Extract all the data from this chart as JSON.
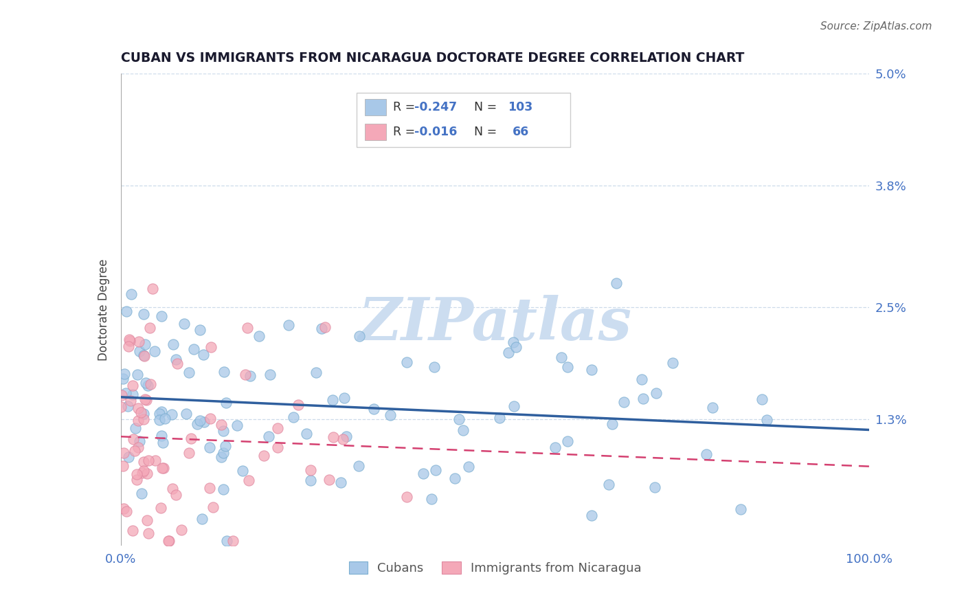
{
  "title": "CUBAN VS IMMIGRANTS FROM NICARAGUA DOCTORATE DEGREE CORRELATION CHART",
  "source": "Source: ZipAtlas.com",
  "ylabel": "Doctorate Degree",
  "xlim": [
    0.0,
    100.0
  ],
  "ylim": [
    -0.05,
    5.0
  ],
  "yticks": [
    1.3,
    2.5,
    3.8,
    5.0
  ],
  "ytick_labels": [
    "1.3%",
    "2.5%",
    "3.8%",
    "5.0%"
  ],
  "blue_scatter_color": "#a8c8e8",
  "pink_scatter_color": "#f4a8b8",
  "blue_line_color": "#2f5f9e",
  "pink_line_color": "#d44070",
  "watermark": "ZIPatlas",
  "watermark_color": "#ccddf0",
  "title_color": "#1a1a2e",
  "axis_label_color": "#4472c4",
  "grid_color": "#c8d8e8",
  "cubans_n": 103,
  "nicaragua_n": 66,
  "cubans_r": -0.247,
  "nicaragua_r": -0.016,
  "blue_legend_label": "Cubans",
  "pink_legend_label": "Immigrants from Nicaragua"
}
